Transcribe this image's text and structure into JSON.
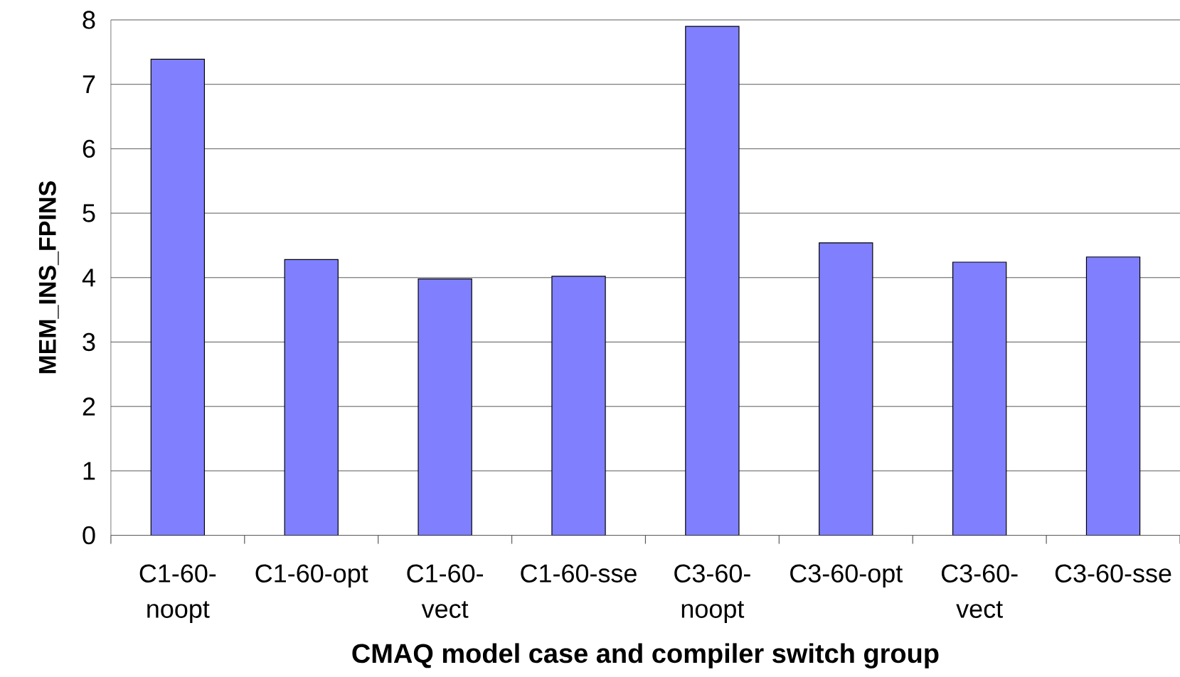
{
  "chart_data": {
    "type": "bar",
    "xlabel": "CMAQ model case and compiler switch group",
    "ylabel": "MEM_INS_FPINS",
    "categories": [
      "C1-60-noopt",
      "C1-60-opt",
      "C1-60-vect",
      "C1-60-sse",
      "C3-60-noopt",
      "C3-60-opt",
      "C3-60-vect",
      "C3-60-sse"
    ],
    "values": [
      7.39,
      4.28,
      3.98,
      4.02,
      7.9,
      4.54,
      4.24,
      4.32
    ],
    "color": "#8080ff",
    "ylim": [
      0,
      8
    ],
    "yticks": [
      0,
      1,
      2,
      3,
      4,
      5,
      6,
      7,
      8
    ],
    "grid": "y"
  }
}
